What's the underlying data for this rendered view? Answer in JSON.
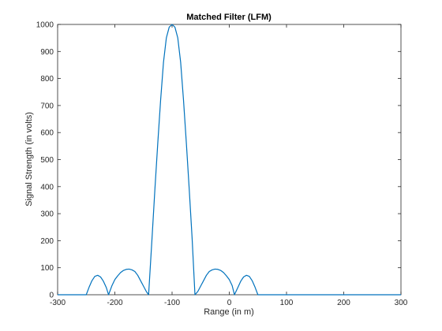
{
  "chart_data": {
    "type": "line",
    "title": "Matched Filter (LFM)",
    "xlabel": "Range (in m)",
    "ylabel": "Signal Strength (in volts)",
    "xlim": [
      -300,
      300
    ],
    "ylim": [
      0,
      1000
    ],
    "xticks": [
      -300,
      -200,
      -100,
      0,
      100,
      200,
      300
    ],
    "yticks": [
      0,
      100,
      200,
      300,
      400,
      500,
      600,
      700,
      800,
      900,
      1000
    ],
    "grid": false,
    "line_color": "#0072BD",
    "series": [
      {
        "x": [
          -300,
          -250,
          -245,
          -240,
          -235,
          -230,
          -225,
          -220,
          -215,
          -211,
          -205,
          -200,
          -195,
          -190,
          -185,
          -180,
          -175,
          -170,
          -165,
          -160,
          -155,
          -150,
          -145,
          -141,
          -135,
          -130,
          -125,
          -120,
          -115,
          -110,
          -105,
          -100,
          -95,
          -90,
          -85,
          -80,
          -75,
          -70,
          -65,
          -60,
          -55,
          -50,
          -45,
          -40,
          -35,
          -30,
          -25,
          -20,
          -15,
          -10,
          -5,
          0,
          5,
          9,
          15,
          20,
          25,
          30,
          35,
          40,
          45,
          50,
          100,
          200,
          300
        ],
        "y": [
          0,
          0,
          28,
          52,
          68,
          72,
          66,
          50,
          27,
          0,
          34,
          56,
          70,
          82,
          90,
          94,
          95,
          92,
          86,
          72,
          52,
          32,
          12,
          0,
          210,
          390,
          560,
          720,
          860,
          950,
          990,
          1000,
          990,
          950,
          860,
          720,
          560,
          390,
          210,
          0,
          12,
          32,
          52,
          72,
          86,
          92,
          95,
          94,
          90,
          82,
          70,
          56,
          34,
          0,
          27,
          50,
          66,
          72,
          68,
          52,
          28,
          0,
          0,
          0,
          0
        ]
      }
    ]
  }
}
